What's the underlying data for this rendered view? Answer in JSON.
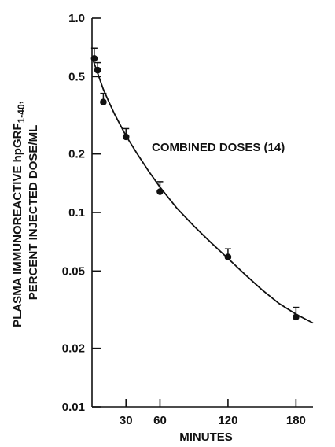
{
  "chart_data": {
    "type": "scatter",
    "title": "",
    "xlabel": "MINUTES",
    "ylabel_line1": "PLASMA IMMUNOREACTIVE hpGRF",
    "ylabel_subscript": "1-40",
    "ylabel_suffix": ",",
    "ylabel_line2": "PERCENT INJECTED DOSE/ML",
    "yscale": "log",
    "xlim": [
      0,
      195
    ],
    "ylim": [
      0.01,
      1.0
    ],
    "x_ticks": [
      30,
      60,
      120,
      180
    ],
    "x_tick_labels": [
      "30",
      "60",
      "120",
      "180"
    ],
    "y_ticks": [
      0.01,
      0.02,
      0.05,
      0.1,
      0.2,
      0.5,
      1.0
    ],
    "y_tick_labels": [
      "0.01",
      "0.02",
      "0.05",
      "0.1",
      "0.2",
      "0.5",
      "1.0"
    ],
    "annotation": "COMBINED DOSES (14)",
    "points": [
      {
        "x": 2,
        "y": 0.62,
        "err": 0.08
      },
      {
        "x": 5,
        "y": 0.54,
        "err": 0.05
      },
      {
        "x": 10,
        "y": 0.37,
        "err": 0.04
      },
      {
        "x": 30,
        "y": 0.245,
        "err": 0.025
      },
      {
        "x": 60,
        "y": 0.128,
        "err": 0.016
      },
      {
        "x": 120,
        "y": 0.059,
        "err": 0.006
      },
      {
        "x": 180,
        "y": 0.029,
        "err": 0.0035
      }
    ],
    "fit_curve": {
      "x": [
        0,
        5,
        10,
        15,
        20,
        30,
        40,
        50,
        60,
        75,
        90,
        105,
        120,
        135,
        150,
        165,
        180,
        195
      ],
      "y": [
        0.63,
        0.52,
        0.43,
        0.37,
        0.32,
        0.248,
        0.2,
        0.163,
        0.135,
        0.105,
        0.085,
        0.07,
        0.058,
        0.048,
        0.04,
        0.034,
        0.03,
        0.027
      ]
    }
  }
}
